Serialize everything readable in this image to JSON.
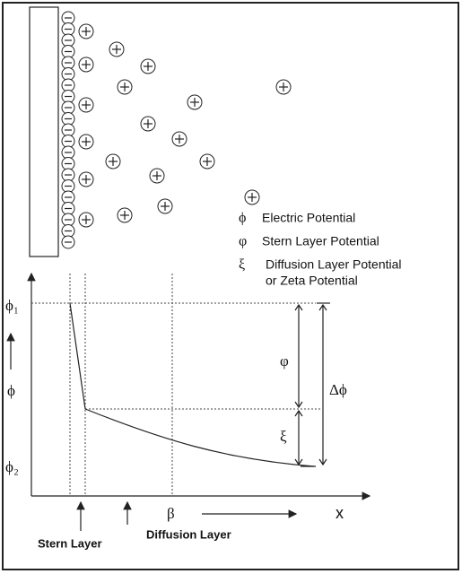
{
  "legend": [
    {
      "symbol": "ϕ",
      "label": "Electric Potential"
    },
    {
      "symbol": "φ",
      "label": "Stern Layer Potential"
    },
    {
      "symbol": "ξ",
      "label": "Diffusion Layer Potential",
      "label2": "or Zeta Potential"
    }
  ],
  "graph": {
    "phi1": "ϕ₁",
    "phi": "ϕ",
    "phi2": "ϕ₂",
    "stern_potential": "φ",
    "zeta_potential": "ξ",
    "delta_phi": "Δϕ",
    "beta": "β",
    "x_axis": "x",
    "stern_layer": "Stern Layer",
    "diffusion_layer": "Diffusion Layer"
  }
}
